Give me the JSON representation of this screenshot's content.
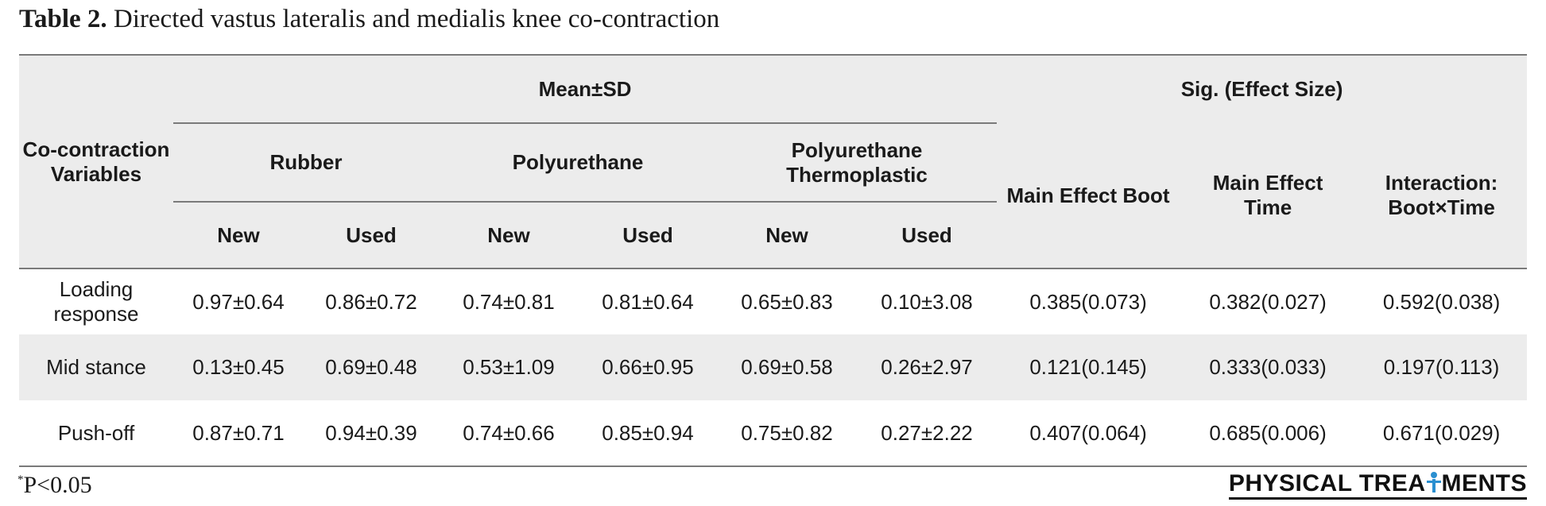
{
  "caption": {
    "label": "Table 2.",
    "text": "Directed vastus lateralis and medialis knee co-contraction"
  },
  "header": {
    "row_label": "Co-contraction Variables",
    "group_mean": "Mean±SD",
    "group_sig": "Sig. (Effect Size)",
    "boots": [
      "Rubber",
      "Polyurethane",
      "Polyurethane Thermoplastic"
    ],
    "conditions": [
      "New",
      "Used",
      "New",
      "Used",
      "New",
      "Used"
    ],
    "sig_cols": [
      "Main Effect Boot",
      "Main Effect Time",
      "Interaction: Boot×Time"
    ]
  },
  "rows": [
    {
      "label": "Loading response",
      "values": [
        "0.97±0.64",
        "0.86±0.72",
        "0.74±0.81",
        "0.81±0.64",
        "0.65±0.83",
        "0.10±3.08"
      ],
      "sig": [
        "0.385(0.073)",
        "0.382(0.027)",
        "0.592(0.038)"
      ]
    },
    {
      "label": "Mid stance",
      "values": [
        "0.13±0.45",
        "0.69±0.48",
        "0.53±1.09",
        "0.66±0.95",
        "0.69±0.58",
        "0.26±2.97"
      ],
      "sig": [
        "0.121(0.145)",
        "0.333(0.033)",
        "0.197(0.113)"
      ]
    },
    {
      "label": "Push-off",
      "values": [
        "0.87±0.71",
        "0.94±0.39",
        "0.74±0.66",
        "0.85±0.94",
        "0.75±0.82",
        "0.27±2.22"
      ],
      "sig": [
        "0.407(0.064)",
        "0.685(0.006)",
        "0.671(0.029)"
      ]
    }
  ],
  "footnote": {
    "marker": "*",
    "text": "P<0.05"
  },
  "logo": {
    "part1": "PHYSICAL TREA",
    "part2": "MENTS"
  }
}
